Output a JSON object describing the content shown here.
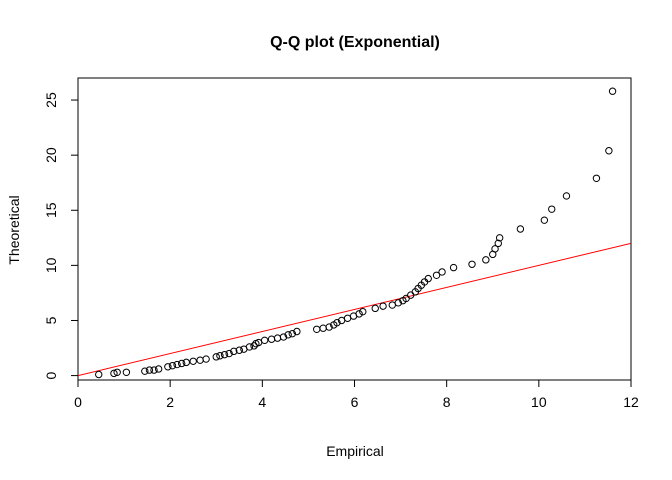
{
  "chart_data": {
    "type": "scatter",
    "title": "Q-Q plot (Exponential)",
    "xlabel": "Empirical",
    "ylabel": "Theoretical",
    "xlim": [
      0,
      12
    ],
    "ylim": [
      -0.4,
      27
    ],
    "x_ticks": [
      0,
      2,
      4,
      6,
      8,
      10,
      12
    ],
    "y_ticks": [
      0,
      5,
      10,
      15,
      20,
      25
    ],
    "grid": false,
    "points": [
      [
        0.45,
        0.1
      ],
      [
        0.78,
        0.2
      ],
      [
        0.85,
        0.3
      ],
      [
        1.05,
        0.3
      ],
      [
        1.45,
        0.4
      ],
      [
        1.55,
        0.5
      ],
      [
        1.65,
        0.5
      ],
      [
        1.75,
        0.6
      ],
      [
        1.95,
        0.8
      ],
      [
        2.05,
        0.9
      ],
      [
        2.15,
        1.0
      ],
      [
        2.25,
        1.1
      ],
      [
        2.35,
        1.2
      ],
      [
        2.5,
        1.3
      ],
      [
        2.65,
        1.4
      ],
      [
        2.78,
        1.5
      ],
      [
        3.0,
        1.7
      ],
      [
        3.08,
        1.8
      ],
      [
        3.18,
        1.9
      ],
      [
        3.28,
        2.0
      ],
      [
        3.38,
        2.2
      ],
      [
        3.5,
        2.3
      ],
      [
        3.6,
        2.4
      ],
      [
        3.72,
        2.6
      ],
      [
        3.82,
        2.7
      ],
      [
        3.86,
        2.9
      ],
      [
        3.92,
        3.0
      ],
      [
        4.05,
        3.2
      ],
      [
        4.2,
        3.3
      ],
      [
        4.33,
        3.4
      ],
      [
        4.46,
        3.5
      ],
      [
        4.56,
        3.7
      ],
      [
        4.65,
        3.8
      ],
      [
        4.75,
        4.0
      ],
      [
        5.18,
        4.2
      ],
      [
        5.32,
        4.3
      ],
      [
        5.45,
        4.4
      ],
      [
        5.55,
        4.6
      ],
      [
        5.62,
        4.8
      ],
      [
        5.72,
        5.0
      ],
      [
        5.85,
        5.2
      ],
      [
        5.98,
        5.4
      ],
      [
        6.1,
        5.6
      ],
      [
        6.18,
        5.8
      ],
      [
        6.45,
        6.1
      ],
      [
        6.62,
        6.3
      ],
      [
        6.82,
        6.4
      ],
      [
        6.95,
        6.6
      ],
      [
        7.05,
        6.8
      ],
      [
        7.12,
        7.0
      ],
      [
        7.22,
        7.3
      ],
      [
        7.32,
        7.6
      ],
      [
        7.38,
        7.9
      ],
      [
        7.45,
        8.2
      ],
      [
        7.52,
        8.5
      ],
      [
        7.6,
        8.8
      ],
      [
        7.78,
        9.1
      ],
      [
        7.9,
        9.4
      ],
      [
        8.15,
        9.8
      ],
      [
        8.55,
        10.1
      ],
      [
        8.85,
        10.5
      ],
      [
        9.0,
        11.0
      ],
      [
        9.05,
        11.5
      ],
      [
        9.12,
        12.0
      ],
      [
        9.15,
        12.5
      ],
      [
        9.6,
        13.3
      ],
      [
        10.12,
        14.1
      ],
      [
        10.28,
        15.1
      ],
      [
        10.6,
        16.3
      ],
      [
        11.25,
        17.9
      ],
      [
        11.52,
        20.4
      ],
      [
        11.6,
        25.8
      ]
    ],
    "reference_line": {
      "from": [
        0,
        0
      ],
      "to": [
        12,
        12
      ],
      "color": "#ff0000"
    },
    "point_color": "#000000"
  }
}
